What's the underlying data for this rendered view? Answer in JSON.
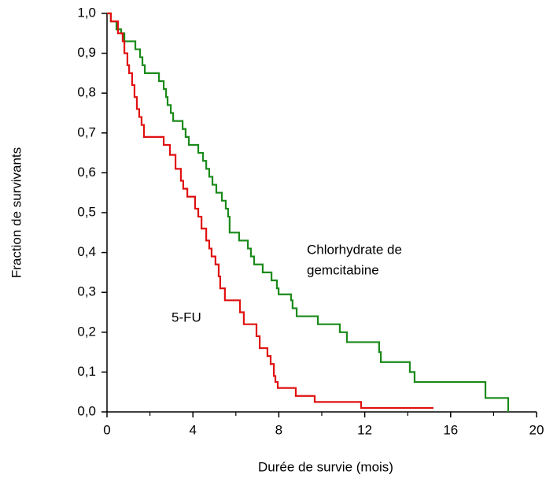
{
  "chart_data": {
    "type": "step",
    "xlabel": "Durée de survie (mois)",
    "ylabel": "Fraction de survivants",
    "xlim": [
      0,
      20
    ],
    "xticks": [
      0,
      4,
      8,
      12,
      16,
      20
    ],
    "xminor_ticks": [
      2,
      6,
      10,
      14,
      18
    ],
    "ylim": [
      0,
      1
    ],
    "yticks": [
      {
        "value": 0,
        "label": "0,0"
      },
      {
        "value": 0.1,
        "label": "0,1"
      },
      {
        "value": 0.2,
        "label": "0,2"
      },
      {
        "value": 0.3,
        "label": "0,3"
      },
      {
        "value": 0.4,
        "label": "0,4"
      },
      {
        "value": 0.5,
        "label": "0,5"
      },
      {
        "value": 0.6,
        "label": "0,6"
      },
      {
        "value": 0.7,
        "label": "0,7"
      },
      {
        "value": 0.8,
        "label": "0,8"
      },
      {
        "value": 0.9,
        "label": "0,9"
      },
      {
        "value": 1,
        "label": "1,0"
      }
    ],
    "series": [
      {
        "color": "#1a8a1a",
        "x": [
          0,
          0.18,
          0.44,
          0.66,
          0.81,
          1.32,
          1.54,
          1.65,
          1.76,
          2.42,
          2.64,
          2.75,
          2.82,
          2.97,
          3.08,
          3.52,
          3.66,
          3.81,
          4.25,
          4.47,
          4.62,
          4.76,
          4.91,
          5.09,
          5.35,
          5.53,
          5.64,
          5.71,
          6.15,
          6.56,
          6.7,
          6.85,
          7.25,
          7.66,
          7.91,
          7.99,
          8.57,
          8.64,
          8.83,
          9.82,
          10.84,
          11.17,
          12.67,
          12.75,
          14.1,
          14.32,
          17.62,
          18.68
        ],
        "values": [
          1,
          0.98,
          0.96,
          0.95,
          0.93,
          0.91,
          0.89,
          0.87,
          0.85,
          0.83,
          0.81,
          0.79,
          0.77,
          0.75,
          0.73,
          0.71,
          0.69,
          0.67,
          0.65,
          0.63,
          0.61,
          0.59,
          0.57,
          0.55,
          0.53,
          0.51,
          0.49,
          0.45,
          0.43,
          0.41,
          0.39,
          0.37,
          0.35,
          0.33,
          0.31,
          0.295,
          0.28,
          0.26,
          0.24,
          0.22,
          0.2,
          0.175,
          0.15,
          0.125,
          0.1,
          0.075,
          0.035,
          0
        ]
      },
      {
        "color": "#e01010",
        "x": [
          0,
          0.18,
          0.51,
          0.73,
          0.81,
          0.95,
          1.03,
          1.17,
          1.28,
          1.39,
          1.5,
          1.61,
          1.72,
          2.64,
          2.93,
          3.19,
          3.44,
          3.55,
          3.74,
          4.1,
          4.25,
          4.4,
          4.62,
          4.76,
          4.87,
          5.05,
          5.2,
          5.27,
          5.49,
          6.19,
          6.37,
          6.96,
          7.11,
          7.47,
          7.62,
          7.77,
          7.84,
          7.95,
          8.79,
          9.67,
          11.83,
          15.2
        ],
        "values": [
          1,
          0.98,
          0.95,
          0.93,
          0.9,
          0.87,
          0.85,
          0.82,
          0.79,
          0.76,
          0.74,
          0.72,
          0.69,
          0.67,
          0.645,
          0.61,
          0.58,
          0.56,
          0.54,
          0.51,
          0.49,
          0.46,
          0.43,
          0.41,
          0.39,
          0.37,
          0.34,
          0.31,
          0.28,
          0.25,
          0.22,
          0.19,
          0.16,
          0.14,
          0.12,
          0.09,
          0.075,
          0.06,
          0.04,
          0.025,
          0.01,
          0.01
        ]
      }
    ],
    "annotations": [
      [
        "Chlorhydrate de",
        "gemcitabine"
      ],
      [
        "5-FU"
      ]
    ]
  }
}
